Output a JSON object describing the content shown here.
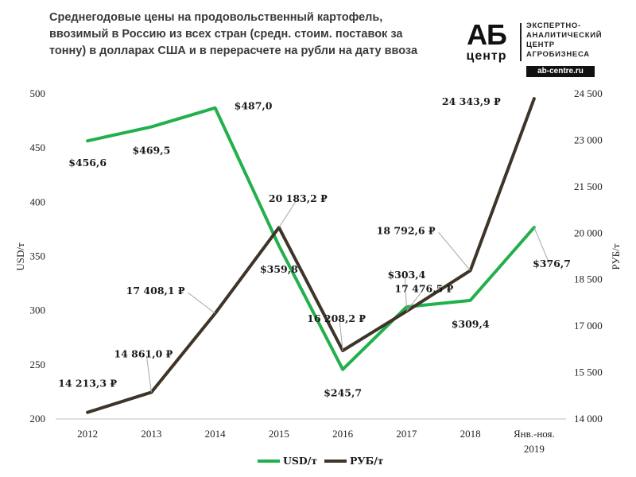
{
  "header": {
    "title": "Среднегодовые цены на продовольственный картофель,\nввозимый в Россию из всех стран (средн. стоим. поставок за\nтонну) в долларах США и в перерасчете на рубли на дату ввоза"
  },
  "logo": {
    "mark_top": "АБ",
    "mark_bottom": "центр",
    "tagline": [
      "ЭКСПЕРТНО-",
      "АНАЛИТИЧЕСКИЙ",
      "ЦЕНТР",
      "АГРОБИЗНЕСА"
    ],
    "site": "ab-centre.ru"
  },
  "colors": {
    "usd": "#22b04c",
    "rub": "#3e3428"
  },
  "chart_data": {
    "type": "line",
    "categories": [
      [
        "2012"
      ],
      [
        "2013"
      ],
      [
        "2014"
      ],
      [
        "2015"
      ],
      [
        "2016"
      ],
      [
        "2017"
      ],
      [
        "2018"
      ],
      [
        "Янв.-ноя.",
        "2019"
      ]
    ],
    "y_left": {
      "label": "USD/т",
      "lim": [
        200,
        500
      ],
      "ticks": [
        "200",
        "250",
        "300",
        "350",
        "400",
        "450",
        "500"
      ],
      "tick_values": [
        200,
        250,
        300,
        350,
        400,
        450,
        500
      ]
    },
    "y_right": {
      "label": "РУБ/т",
      "lim": [
        14000,
        24500
      ],
      "ticks": [
        "14 000",
        "15 500",
        "17 000",
        "18 500",
        "20 000",
        "21 500",
        "23 000",
        "24 500"
      ],
      "tick_values": [
        14000,
        15500,
        17000,
        18500,
        20000,
        21500,
        23000,
        24500
      ]
    },
    "grid": false,
    "legend_position": "bottom",
    "series": [
      {
        "name": "USD/т",
        "axis": "left",
        "values": [
          456.6,
          469.5,
          487.0,
          359.8,
          245.7,
          303.4,
          309.4,
          376.7
        ],
        "labels": [
          "$456,6",
          "$469,5",
          "$487,0",
          "$359,8",
          "$245,7",
          "$303,4",
          "$309,4",
          "$376,7"
        ]
      },
      {
        "name": "РУБ/т",
        "axis": "right",
        "values": [
          14213.3,
          14861.0,
          17408.1,
          20183.2,
          16208.2,
          17476.5,
          18792.6,
          24343.9
        ],
        "labels": [
          "14 213,3 ₽",
          "14 861,0 ₽",
          "17 408,1 ₽",
          "20 183,2 ₽",
          "16 208,2 ₽",
          "17 476,5 ₽",
          "18 792,6 ₽",
          "24 343,9 ₽"
        ]
      }
    ]
  }
}
